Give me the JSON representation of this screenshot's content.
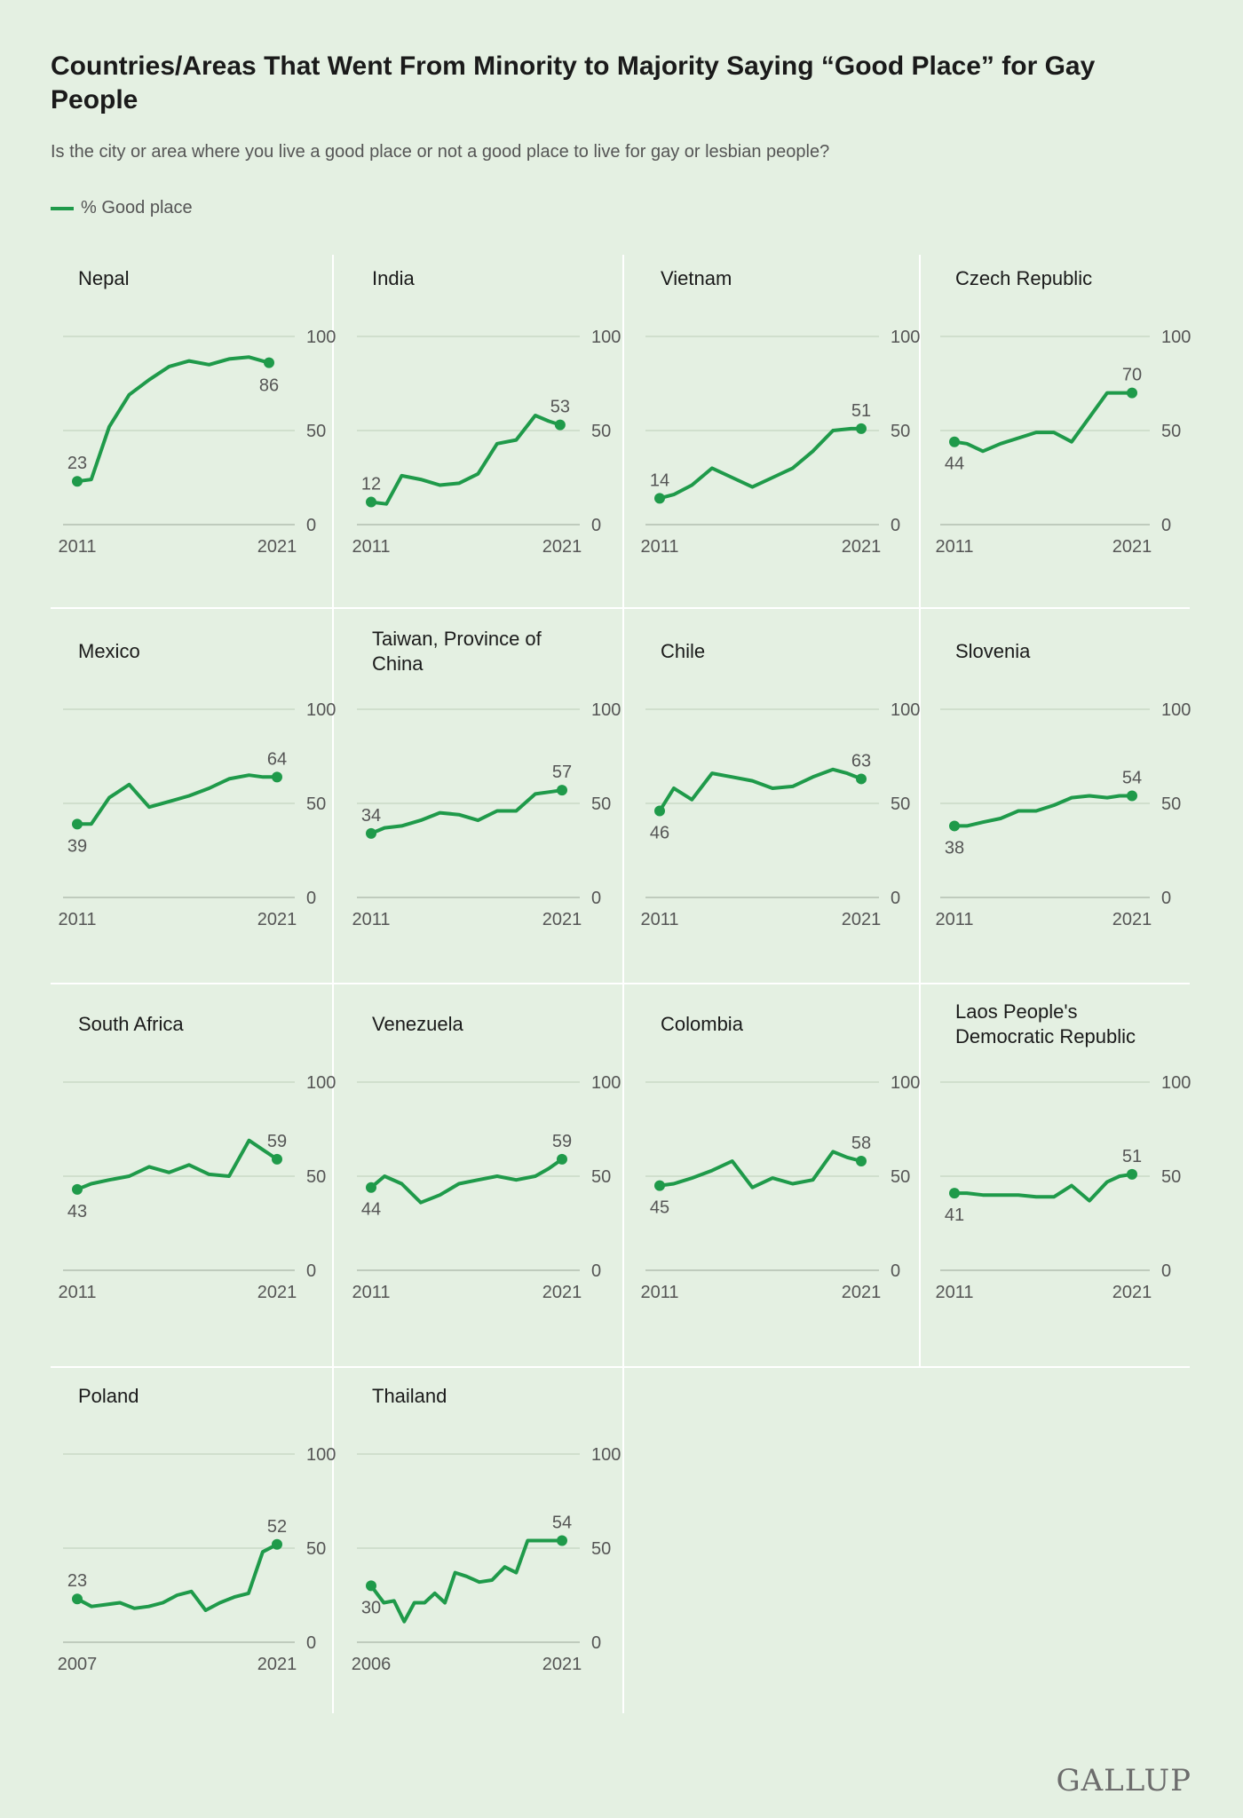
{
  "header": {
    "title": "Countries/Areas That Went From Minority to Majority Saying “Good Place” for Gay People",
    "subtitle": "Is the city or area where you live a good place or not a good place to live for gay or lesbian people?",
    "legend_label": "% Good place"
  },
  "brand": {
    "logo_text": "GALLUP"
  },
  "colors": {
    "line": "#1f9a4a",
    "background": "#e4f0e2",
    "grid": "#c9d9c6",
    "divider": "#ffffff"
  },
  "chart_data": [
    {
      "type": "line",
      "title": "Nepal",
      "xlim": [
        2011,
        2021
      ],
      "ylim": [
        0,
        100
      ],
      "yticks": [
        0,
        50,
        100
      ],
      "xtick_labels": [
        "2011",
        "2021"
      ],
      "first_label": "23",
      "last_label": "86",
      "x": [
        2011,
        2011.7,
        2012.6,
        2013.6,
        2014.6,
        2015.6,
        2016.6,
        2017.6,
        2018.6,
        2019.6,
        2020.6
      ],
      "y": [
        23,
        24,
        52,
        69,
        77,
        84,
        87,
        85,
        88,
        89,
        86
      ]
    },
    {
      "type": "line",
      "title": "India",
      "xlim": [
        2011,
        2021
      ],
      "ylim": [
        0,
        100
      ],
      "yticks": [
        0,
        50,
        100
      ],
      "xtick_labels": [
        "2011",
        "2021"
      ],
      "first_label": "12",
      "last_label": "53",
      "x": [
        2011,
        2011.8,
        2012.6,
        2013.6,
        2014.6,
        2015.6,
        2016.6,
        2017.6,
        2018.6,
        2019.6,
        2020.3,
        2020.9
      ],
      "y": [
        12,
        11,
        26,
        24,
        21,
        22,
        27,
        43,
        45,
        58,
        55,
        53
      ]
    },
    {
      "type": "line",
      "title": "Vietnam",
      "xlim": [
        2011,
        2021
      ],
      "ylim": [
        0,
        100
      ],
      "yticks": [
        0,
        50,
        100
      ],
      "xtick_labels": [
        "2011",
        "2021"
      ],
      "first_label": "14",
      "last_label": "51",
      "x": [
        2011,
        2011.7,
        2012.6,
        2013.6,
        2014.6,
        2015.6,
        2016.6,
        2017.6,
        2018.6,
        2019.6,
        2020.5,
        2021
      ],
      "y": [
        14,
        16,
        21,
        30,
        25,
        20,
        25,
        30,
        39,
        50,
        51,
        51
      ]
    },
    {
      "type": "line",
      "title": "Czech Republic",
      "xlim": [
        2011,
        2021
      ],
      "ylim": [
        0,
        100
      ],
      "yticks": [
        0,
        50,
        100
      ],
      "xtick_labels": [
        "2011",
        "2021"
      ],
      "first_label": "44",
      "last_label": "70",
      "x": [
        2011,
        2011.7,
        2012.6,
        2013.6,
        2014.6,
        2015.6,
        2016.6,
        2017.6,
        2018.6,
        2019.6,
        2020.3,
        2021
      ],
      "y": [
        44,
        43,
        39,
        43,
        46,
        49,
        49,
        44,
        57,
        70,
        70,
        70
      ]
    },
    {
      "type": "line",
      "title": "Mexico",
      "xlim": [
        2011,
        2021
      ],
      "ylim": [
        0,
        100
      ],
      "yticks": [
        0,
        50,
        100
      ],
      "xtick_labels": [
        "2011",
        "2021"
      ],
      "first_label": "39",
      "last_label": "64",
      "x": [
        2011,
        2011.7,
        2012.6,
        2013.6,
        2014.6,
        2015.6,
        2016.6,
        2017.6,
        2018.6,
        2019.6,
        2020.3,
        2021
      ],
      "y": [
        39,
        39,
        53,
        60,
        48,
        51,
        54,
        58,
        63,
        65,
        64,
        64
      ]
    },
    {
      "type": "line",
      "title": "Taiwan, Province of China",
      "xlim": [
        2011,
        2021
      ],
      "ylim": [
        0,
        100
      ],
      "yticks": [
        0,
        50,
        100
      ],
      "xtick_labels": [
        "2011",
        "2021"
      ],
      "first_label": "34",
      "last_label": "57",
      "x": [
        2011,
        2011.7,
        2012.6,
        2013.6,
        2014.6,
        2015.6,
        2016.6,
        2017.6,
        2018.6,
        2019.6,
        2020.3,
        2021
      ],
      "y": [
        34,
        37,
        38,
        41,
        45,
        44,
        41,
        46,
        46,
        55,
        56,
        57
      ]
    },
    {
      "type": "line",
      "title": "Chile",
      "xlim": [
        2011,
        2021
      ],
      "ylim": [
        0,
        100
      ],
      "yticks": [
        0,
        50,
        100
      ],
      "xtick_labels": [
        "2011",
        "2021"
      ],
      "first_label": "46",
      "last_label": "63",
      "x": [
        2011,
        2011.7,
        2012.6,
        2013.6,
        2014.6,
        2015.6,
        2016.6,
        2017.6,
        2018.6,
        2019.6,
        2020.3,
        2021
      ],
      "y": [
        46,
        58,
        52,
        66,
        64,
        62,
        58,
        59,
        64,
        68,
        66,
        63
      ]
    },
    {
      "type": "line",
      "title": "Slovenia",
      "xlim": [
        2011,
        2021
      ],
      "ylim": [
        0,
        100
      ],
      "yticks": [
        0,
        50,
        100
      ],
      "xtick_labels": [
        "2011",
        "2021"
      ],
      "first_label": "38",
      "last_label": "54",
      "x": [
        2011,
        2011.7,
        2012.6,
        2013.6,
        2014.6,
        2015.6,
        2016.6,
        2017.6,
        2018.6,
        2019.6,
        2020.3,
        2021
      ],
      "y": [
        38,
        38,
        40,
        42,
        46,
        46,
        49,
        53,
        54,
        53,
        54,
        54
      ]
    },
    {
      "type": "line",
      "title": "South Africa",
      "xlim": [
        2011,
        2021
      ],
      "ylim": [
        0,
        100
      ],
      "yticks": [
        0,
        50,
        100
      ],
      "xtick_labels": [
        "2011",
        "2021"
      ],
      "first_label": "43",
      "last_label": "59",
      "x": [
        2011,
        2011.7,
        2012.6,
        2013.6,
        2014.6,
        2015.6,
        2016.6,
        2017.6,
        2018.6,
        2019.6,
        2020.3,
        2021
      ],
      "y": [
        43,
        46,
        48,
        50,
        55,
        52,
        56,
        51,
        50,
        69,
        64,
        59
      ]
    },
    {
      "type": "line",
      "title": "Venezuela",
      "xlim": [
        2011,
        2021
      ],
      "ylim": [
        0,
        100
      ],
      "yticks": [
        0,
        50,
        100
      ],
      "xtick_labels": [
        "2011",
        "2021"
      ],
      "first_label": "44",
      "last_label": "59",
      "x": [
        2011,
        2011.7,
        2012.6,
        2013.6,
        2014.6,
        2015.6,
        2016.6,
        2017.6,
        2018.6,
        2019.6,
        2020.3,
        2021
      ],
      "y": [
        44,
        50,
        46,
        36,
        40,
        46,
        48,
        50,
        48,
        50,
        54,
        59
      ]
    },
    {
      "type": "line",
      "title": "Colombia",
      "xlim": [
        2011,
        2021
      ],
      "ylim": [
        0,
        100
      ],
      "yticks": [
        0,
        50,
        100
      ],
      "xtick_labels": [
        "2011",
        "2021"
      ],
      "first_label": "45",
      "last_label": "58",
      "x": [
        2011,
        2011.7,
        2012.6,
        2013.6,
        2014.6,
        2015.6,
        2016.6,
        2017.6,
        2018.6,
        2019.6,
        2020.3,
        2021
      ],
      "y": [
        45,
        46,
        49,
        53,
        58,
        44,
        49,
        46,
        48,
        63,
        60,
        58
      ]
    },
    {
      "type": "line",
      "title": "Laos People's Democratic Republic",
      "xlim": [
        2011,
        2021
      ],
      "ylim": [
        0,
        100
      ],
      "yticks": [
        0,
        50,
        100
      ],
      "xtick_labels": [
        "2011",
        "2021"
      ],
      "first_label": "41",
      "last_label": "51",
      "x": [
        2011,
        2011.7,
        2012.6,
        2013.6,
        2014.6,
        2015.6,
        2016.6,
        2017.6,
        2018.6,
        2019.6,
        2020.3,
        2021
      ],
      "y": [
        41,
        41,
        40,
        40,
        40,
        39,
        39,
        45,
        37,
        47,
        50,
        51
      ]
    },
    {
      "type": "line",
      "title": "Poland",
      "xlim": [
        2007,
        2021
      ],
      "ylim": [
        0,
        100
      ],
      "yticks": [
        0,
        50,
        100
      ],
      "xtick_labels": [
        "2007",
        "2021"
      ],
      "first_label": "23",
      "last_label": "52",
      "x": [
        2007,
        2008,
        2009,
        2010,
        2011,
        2012,
        2013,
        2014,
        2015,
        2016,
        2017,
        2018,
        2019,
        2020,
        2021
      ],
      "y": [
        23,
        19,
        20,
        21,
        18,
        19,
        21,
        25,
        27,
        17,
        21,
        24,
        26,
        48,
        52
      ]
    },
    {
      "type": "line",
      "title": "Thailand",
      "xlim": [
        2006,
        2021
      ],
      "ylim": [
        0,
        100
      ],
      "yticks": [
        0,
        50,
        100
      ],
      "xtick_labels": [
        "2006",
        "2021"
      ],
      "first_label": "30",
      "last_label": "54",
      "x": [
        2006,
        2007,
        2007.8,
        2008.6,
        2009.4,
        2010.2,
        2011,
        2011.8,
        2012.6,
        2013.5,
        2014.5,
        2015.5,
        2016.5,
        2017.4,
        2018.3,
        2019.2,
        2020,
        2021
      ],
      "y": [
        30,
        21,
        22,
        11,
        21,
        21,
        26,
        21,
        37,
        35,
        32,
        33,
        40,
        37,
        54,
        54,
        54,
        54
      ]
    }
  ]
}
